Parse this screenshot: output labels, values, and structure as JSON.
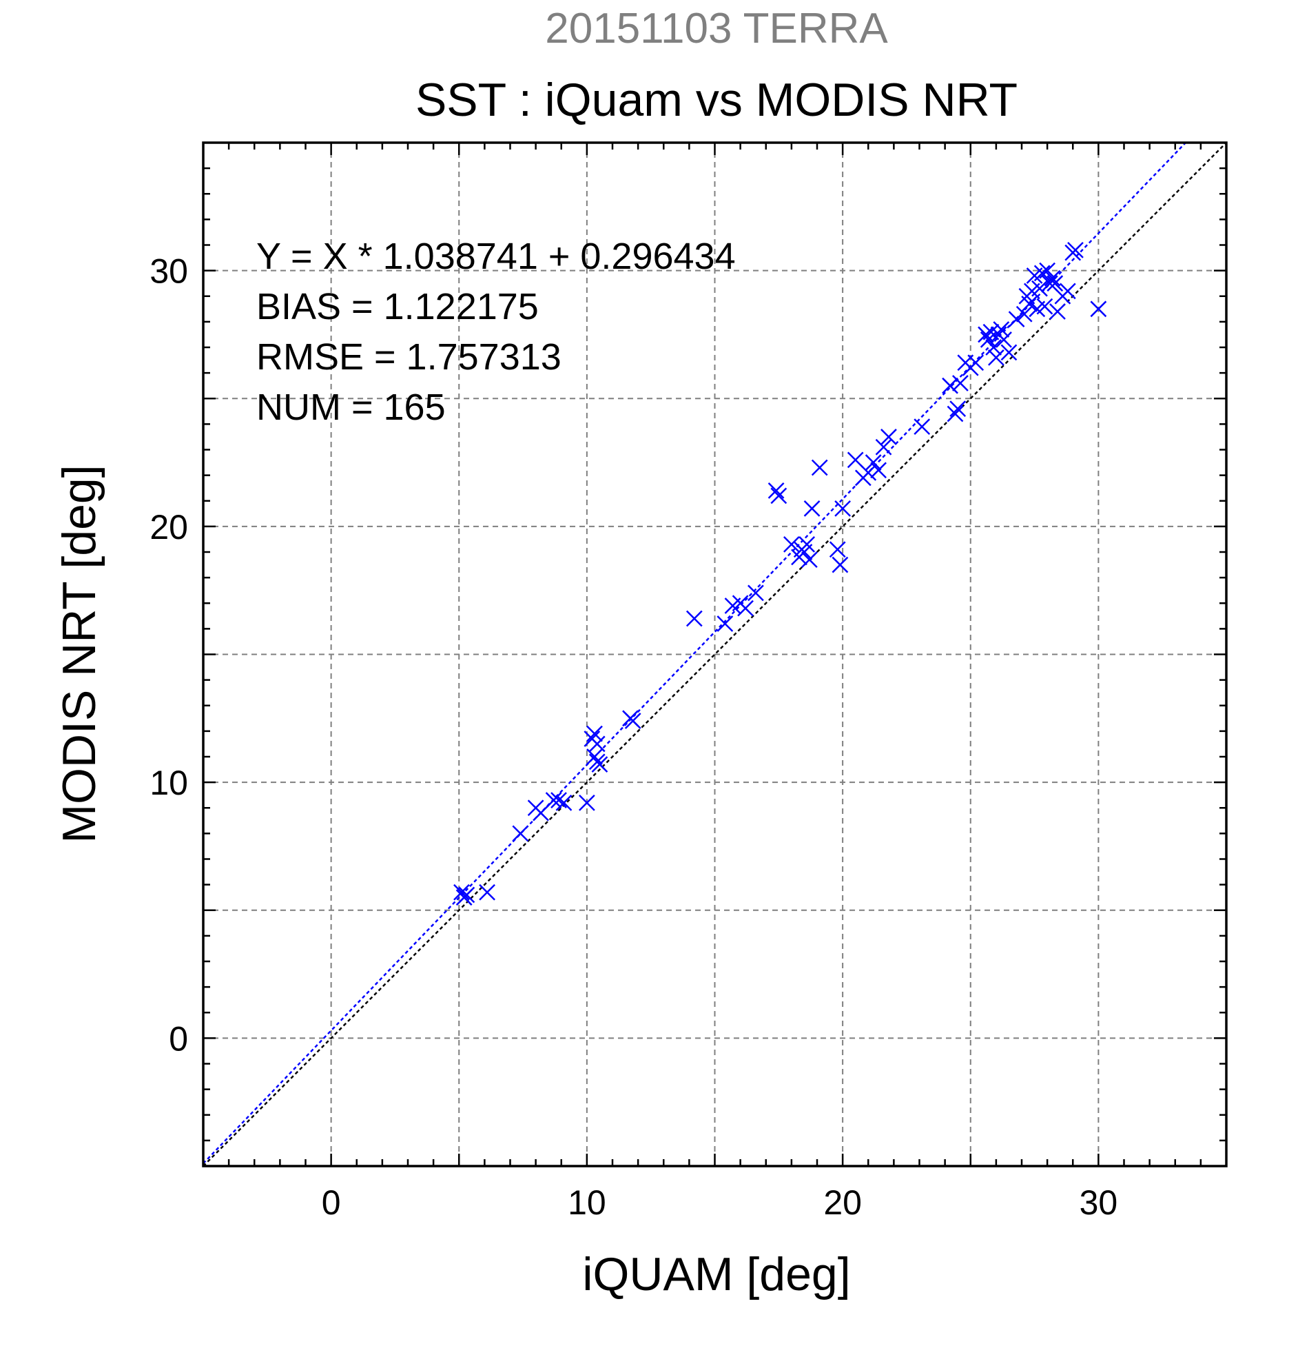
{
  "chart_data": {
    "type": "scatter",
    "suptitle": "20151103 TERRA",
    "title": "SST : iQuam vs MODIS NRT",
    "xlabel": "iQUAM [deg]",
    "ylabel": "MODIS NRT [deg]",
    "xlim": [
      -5,
      35
    ],
    "ylim": [
      -5,
      35
    ],
    "xticks": [
      0,
      10,
      20,
      30
    ],
    "yticks": [
      0,
      10,
      20,
      30
    ],
    "xtick_labels": [
      "0",
      "10",
      "20",
      "30"
    ],
    "ytick_labels": [
      "0",
      "10",
      "20",
      "30"
    ],
    "grid_major": [
      -5,
      0,
      5,
      10,
      15,
      20,
      25,
      30,
      35
    ],
    "grid": true,
    "marker": "x",
    "colors": {
      "points": "#0000ff",
      "fit_line": "#0000ff",
      "identity_line": "#000000",
      "grid": "#7f7f7f",
      "suptitle": "#808080"
    },
    "annotations": [
      "Y = X * 1.038741 + 0.296434",
      "BIAS = 1.122175",
      "RMSE = 1.757313",
      "NUM = 165"
    ],
    "fit": {
      "slope": 1.038741,
      "intercept": 0.296434
    },
    "identity_line": true,
    "series": [
      {
        "x": [
          5.1,
          5.2,
          5.3,
          6.1,
          7.4,
          8.0,
          8.2,
          8.7,
          8.9,
          9.1,
          10.0,
          10.2,
          10.3,
          10.4,
          10.5,
          10.3,
          10.4,
          11.7,
          11.8,
          14.2,
          15.4,
          15.7,
          16.0,
          16.2,
          16.6,
          17.4,
          17.5,
          18.0,
          18.3,
          18.4,
          18.5,
          18.6,
          18.7,
          18.8,
          19.1,
          19.8,
          19.9,
          20.0,
          20.5,
          20.8,
          21.0,
          21.2,
          21.4,
          21.6,
          21.8,
          23.1,
          24.2,
          24.4,
          24.5,
          24.6,
          24.8,
          25.0,
          25.2,
          25.6,
          25.7,
          25.8,
          25.9,
          26.0,
          26.1,
          26.2,
          26.3,
          26.5,
          26.8,
          27.1,
          27.2,
          27.3,
          27.4,
          27.5,
          27.6,
          27.7,
          27.8,
          27.9,
          28.0,
          28.1,
          28.2,
          28.3,
          28.4,
          28.6,
          28.8,
          29.0,
          29.1,
          30.0
        ],
        "y": [
          5.7,
          5.5,
          5.6,
          5.7,
          8.0,
          9.0,
          8.8,
          9.3,
          9.3,
          9.2,
          9.2,
          11.7,
          11.9,
          10.8,
          10.7,
          11.0,
          11.5,
          12.5,
          12.4,
          16.4,
          16.2,
          16.9,
          17.0,
          16.8,
          17.4,
          21.4,
          21.2,
          19.3,
          18.8,
          19.1,
          19.0,
          19.3,
          18.7,
          20.7,
          22.3,
          19.1,
          18.5,
          20.7,
          22.6,
          21.9,
          22.1,
          22.5,
          22.2,
          23.1,
          23.5,
          23.9,
          25.5,
          24.4,
          24.6,
          25.6,
          26.4,
          26.2,
          26.4,
          27.5,
          27.3,
          27.6,
          27.0,
          26.6,
          27.5,
          27.7,
          27.3,
          26.8,
          28.1,
          28.3,
          29.0,
          28.7,
          29.2,
          29.8,
          28.5,
          29.3,
          29.9,
          28.6,
          30.0,
          29.5,
          29.7,
          29.5,
          28.4,
          29.0,
          29.2,
          30.7,
          30.8,
          28.5
        ]
      }
    ]
  }
}
